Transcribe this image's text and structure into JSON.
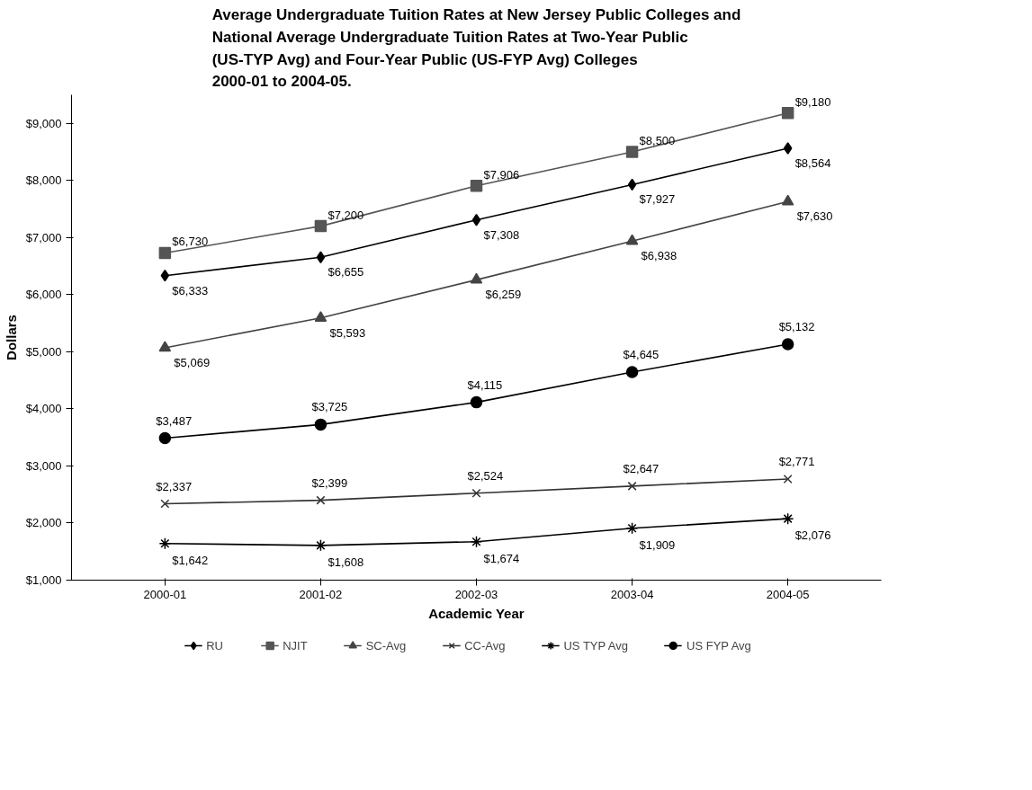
{
  "chart_data": {
    "type": "line",
    "title": "Average Undergraduate Tuition Rates at New Jersey Public Colleges and\nNational Average Undergraduate Tuition Rates at Two-Year Public\n(US-TYP Avg) and Four-Year Public (US-FYP Avg) Colleges\n2000-01 to 2004-05.",
    "xlabel": "Academic Year",
    "ylabel": "Dollars",
    "categories": [
      "2000-01",
      "2001-02",
      "2002-03",
      "2003-04",
      "2004-05"
    ],
    "ylim": [
      1000,
      9500
    ],
    "yticks": [
      {
        "value": 1000,
        "label": "$1,000"
      },
      {
        "value": 2000,
        "label": "$2,000"
      },
      {
        "value": 3000,
        "label": "$3,000"
      },
      {
        "value": 4000,
        "label": "$4,000"
      },
      {
        "value": 5000,
        "label": "$5,000"
      },
      {
        "value": 6000,
        "label": "$6,000"
      },
      {
        "value": 7000,
        "label": "$7,000"
      },
      {
        "value": 8000,
        "label": "$8,000"
      },
      {
        "value": 9000,
        "label": "$9,000"
      }
    ],
    "grid": false,
    "legend": "bottom",
    "line_style": "solid",
    "series": [
      {
        "name": "RU",
        "color": "#000000",
        "marker": "diamond",
        "values": [
          6333,
          6655,
          7308,
          7927,
          8564
        ],
        "value_labels": [
          "$6,333",
          "$6,655",
          "$7,308",
          "$7,927",
          "$8,564"
        ]
      },
      {
        "name": "NJIT",
        "color": "#555555",
        "marker": "square",
        "values": [
          6730,
          7200,
          7906,
          8500,
          9180
        ],
        "value_labels": [
          "$6,730",
          "$7,200",
          "$7,906",
          "$8,500",
          "$9,180"
        ]
      },
      {
        "name": "SC-Avg",
        "color": "#444444",
        "marker": "triangle",
        "values": [
          5069,
          5593,
          6259,
          6938,
          7630
        ],
        "value_labels": [
          "$5,069",
          "$5,593",
          "$6,259",
          "$6,938",
          "$7,630"
        ]
      },
      {
        "name": "CC-Avg",
        "color": "#333333",
        "marker": "x",
        "values": [
          2337,
          2399,
          2524,
          2647,
          2771
        ],
        "value_labels": [
          "$2,337",
          "$2,399",
          "$2,524",
          "$2,647",
          "$2,771"
        ]
      },
      {
        "name": "US TYP Avg",
        "color": "#000000",
        "marker": "cross",
        "values": [
          1642,
          1608,
          1674,
          1909,
          2076
        ],
        "value_labels": [
          "$1,642",
          "$1,608",
          "$1,674",
          "$1,909",
          "$2,076"
        ]
      },
      {
        "name": "US FYP Avg",
        "color": "#000000",
        "marker": "circle",
        "values": [
          3487,
          3725,
          4115,
          4645,
          5132
        ],
        "value_labels": [
          "$3,487",
          "$3,725",
          "$4,115",
          "$4,645",
          "$5,132"
        ]
      }
    ]
  }
}
